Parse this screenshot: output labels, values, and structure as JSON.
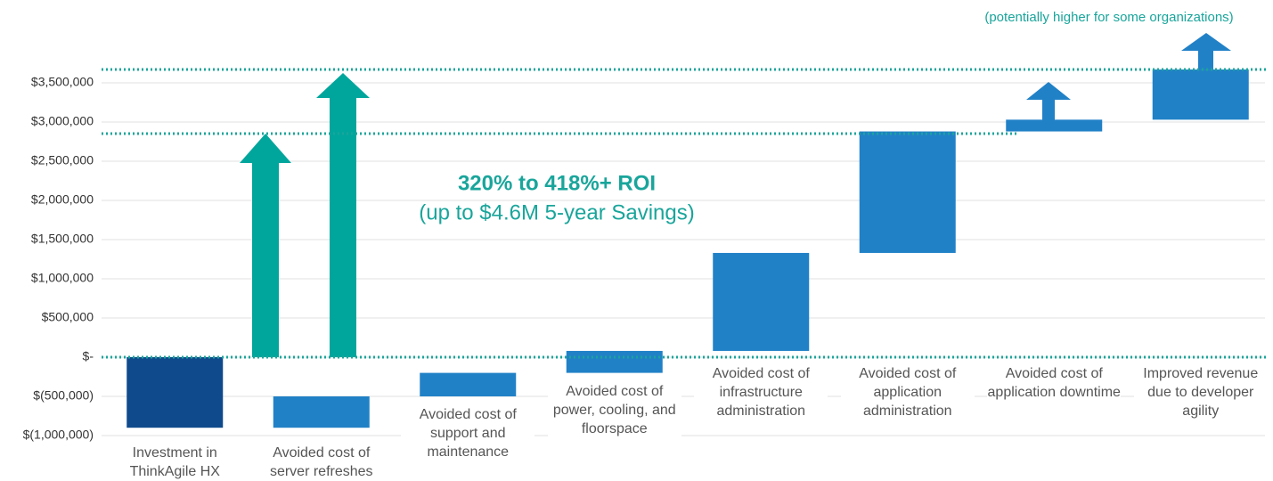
{
  "chart_data": {
    "type": "waterfall",
    "categories": [
      "Investment in ThinkAgile HX",
      "Avoided cost of server refreshes",
      "Avoided cost of support and maintenance",
      "Avoided cost of power, cooling, and floorspace",
      "Avoided cost of infrastructure administration",
      "Avoided cost of application administration",
      "Avoided cost of application downtime",
      "Improved revenue due to developer agility"
    ],
    "values": [
      -900000,
      400000,
      300000,
      280000,
      1250000,
      1550000,
      150000,
      640000
    ],
    "colors": [
      "#0f4a8c",
      "#2181c7",
      "#2181c7",
      "#2181c7",
      "#2181c7",
      "#2181c7",
      "#2181c7",
      "#2181c7"
    ],
    "ylim": [
      -1000000,
      4000000
    ],
    "yticks": [
      {
        "value": -1000000,
        "label": "$(1,000,000)"
      },
      {
        "value": -500000,
        "label": "$(500,000)"
      },
      {
        "value": 0,
        "label": "$-"
      },
      {
        "value": 500000,
        "label": "$500,000"
      },
      {
        "value": 1000000,
        "label": "$1,000,000"
      },
      {
        "value": 1500000,
        "label": "$1,500,000"
      },
      {
        "value": 2000000,
        "label": "$2,000,000"
      },
      {
        "value": 2500000,
        "label": "$2,500,000"
      },
      {
        "value": 3000000,
        "label": "$3,000,000"
      },
      {
        "value": 3500000,
        "label": "$3,500,000"
      }
    ],
    "grid": true,
    "annotations": [
      "320% to 418%+ ROI",
      "(up to $4.6M 5-year Savings)",
      "(potentially higher for some organizations)"
    ]
  }
}
